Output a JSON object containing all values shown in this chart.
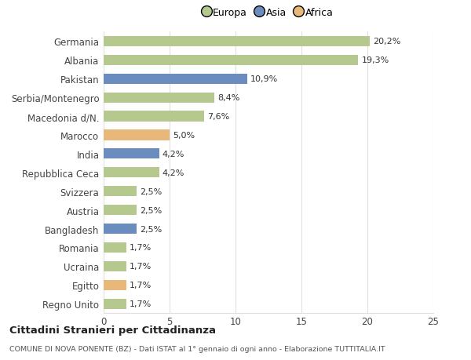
{
  "categories": [
    "Regno Unito",
    "Egitto",
    "Ucraina",
    "Romania",
    "Bangladesh",
    "Austria",
    "Svizzera",
    "Repubblica Ceca",
    "India",
    "Marocco",
    "Macedonia d/N.",
    "Serbia/Montenegro",
    "Pakistan",
    "Albania",
    "Germania"
  ],
  "values": [
    1.7,
    1.7,
    1.7,
    1.7,
    2.5,
    2.5,
    2.5,
    4.2,
    4.2,
    5.0,
    7.6,
    8.4,
    10.9,
    19.3,
    20.2
  ],
  "labels": [
    "1,7%",
    "1,7%",
    "1,7%",
    "1,7%",
    "2,5%",
    "2,5%",
    "2,5%",
    "4,2%",
    "4,2%",
    "5,0%",
    "7,6%",
    "8,4%",
    "10,9%",
    "19,3%",
    "20,2%"
  ],
  "continents": [
    "Europa",
    "Africa",
    "Europa",
    "Europa",
    "Asia",
    "Europa",
    "Europa",
    "Europa",
    "Asia",
    "Africa",
    "Europa",
    "Europa",
    "Asia",
    "Europa",
    "Europa"
  ],
  "colors": {
    "Europa": "#b5c98e",
    "Asia": "#6b8cbe",
    "Africa": "#e8b87a"
  },
  "xlim": [
    0,
    25
  ],
  "xticks": [
    0,
    5,
    10,
    15,
    20,
    25
  ],
  "title": "Cittadini Stranieri per Cittadinanza",
  "subtitle": "COMUNE DI NOVA PONENTE (BZ) - Dati ISTAT al 1° gennaio di ogni anno - Elaborazione TUTTITALIA.IT",
  "background_color": "#ffffff",
  "bar_height": 0.55,
  "grid_color": "#e0e0e0"
}
